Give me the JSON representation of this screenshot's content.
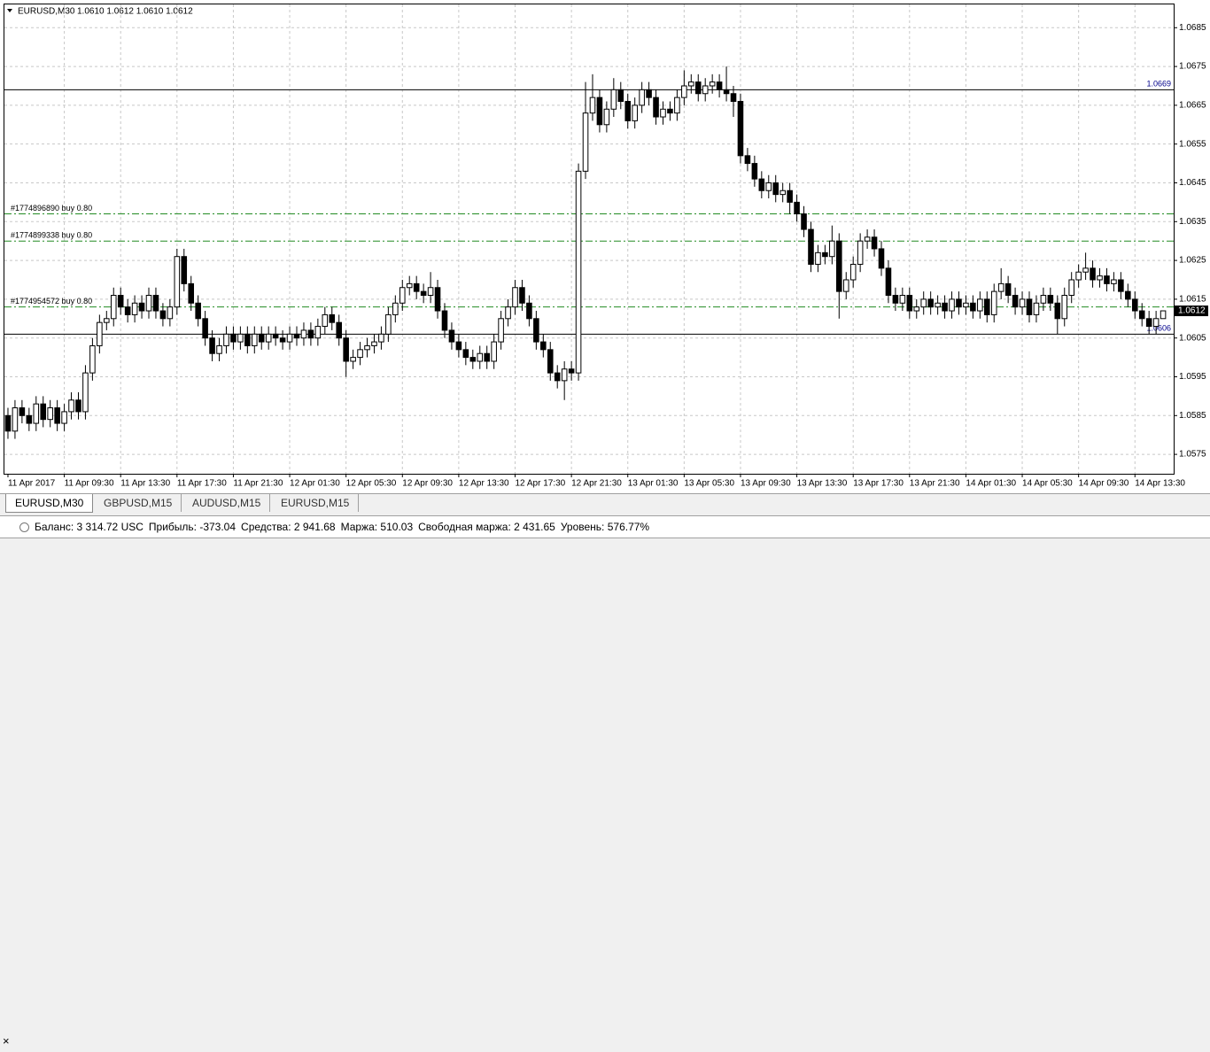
{
  "chart_data": {
    "type": "candlestick",
    "symbol": "EURUSD,M30",
    "ohlc_text": "1.0610 1.0612 1.0610 1.0612",
    "open": [
      1.0585,
      1.0581,
      1.0587,
      1.0585,
      1.0583,
      1.0588,
      1.0584,
      1.0587,
      1.0583,
      1.0586,
      1.0589,
      1.0586,
      1.0596,
      1.0603,
      1.0609,
      1.061,
      1.0616,
      1.0613,
      1.0611,
      1.0614,
      1.0612,
      1.0616,
      1.0612,
      1.061,
      1.0613,
      1.0626,
      1.0619,
      1.0614,
      1.061,
      1.0605,
      1.0601,
      1.0603,
      1.0606,
      1.0604,
      1.0606,
      1.0603,
      1.0606,
      1.0604,
      1.0606,
      1.0605,
      1.0604,
      1.0606,
      1.0605,
      1.0607,
      1.0605,
      1.0608,
      1.0611,
      1.0609,
      1.0605,
      1.0599,
      1.06,
      1.0602,
      1.0603,
      1.0604,
      1.0606,
      1.0611,
      1.0614,
      1.0618,
      1.0619,
      1.0617,
      1.0616,
      1.0618,
      1.0612,
      1.0607,
      1.0604,
      1.0602,
      1.06,
      1.0599,
      1.0601,
      1.0599,
      1.0604,
      1.061,
      1.0613,
      1.0618,
      1.0614,
      1.061,
      1.0604,
      1.0602,
      1.0596,
      1.0594,
      1.0597,
      1.0596,
      1.0648,
      1.0663,
      1.0667,
      1.066,
      1.0664,
      1.0669,
      1.0666,
      1.0661,
      1.0665,
      1.0669,
      1.0667,
      1.0662,
      1.0664,
      1.0663,
      1.0667,
      1.067,
      1.0671,
      1.0668,
      1.067,
      1.0671,
      1.0669,
      1.0668,
      1.0666,
      1.0652,
      1.065,
      1.0646,
      1.0643,
      1.0645,
      1.0642,
      1.0643,
      1.064,
      1.0637,
      1.0633,
      1.0624,
      1.0627,
      1.0626,
      1.063,
      1.0617,
      1.062,
      1.0624,
      1.063,
      1.0631,
      1.0628,
      1.0623,
      1.0616,
      1.0614,
      1.0616,
      1.0612,
      1.0613,
      1.0615,
      1.0613,
      1.0614,
      1.0612,
      1.0615,
      1.0613,
      1.0614,
      1.0612,
      1.0615,
      1.0611,
      1.0617,
      1.0619,
      1.0616,
      1.0613,
      1.0615,
      1.0611,
      1.0614,
      1.0616,
      1.0614,
      1.061,
      1.0616,
      1.062,
      1.0622,
      1.0623,
      1.062,
      1.0621,
      1.0619,
      1.062,
      1.0617,
      1.0615,
      1.0612,
      1.061,
      1.0608,
      1.061
    ],
    "high": [
      1.0587,
      1.0589,
      1.0589,
      1.0587,
      1.059,
      1.059,
      1.0589,
      1.0589,
      1.0588,
      1.0591,
      1.0591,
      1.0598,
      1.0605,
      1.0611,
      1.0612,
      1.0618,
      1.0618,
      1.0615,
      1.0616,
      1.0616,
      1.0618,
      1.0618,
      1.0614,
      1.0615,
      1.0628,
      1.0628,
      1.0621,
      1.0616,
      1.0612,
      1.0607,
      1.0605,
      1.0608,
      1.0608,
      1.0608,
      1.0608,
      1.0608,
      1.0608,
      1.0608,
      1.0608,
      1.0607,
      1.0608,
      1.0608,
      1.0609,
      1.0609,
      1.061,
      1.0613,
      1.0613,
      1.0611,
      1.0607,
      1.0602,
      1.0604,
      1.0605,
      1.0606,
      1.0608,
      1.0613,
      1.0616,
      1.062,
      1.0621,
      1.0621,
      1.0619,
      1.0622,
      1.062,
      1.0614,
      1.0609,
      1.0606,
      1.0604,
      1.0602,
      1.0603,
      1.0603,
      1.0606,
      1.0612,
      1.0615,
      1.062,
      1.062,
      1.0616,
      1.0612,
      1.0606,
      1.0604,
      1.0598,
      1.0599,
      1.0599,
      1.065,
      1.0671,
      1.0673,
      1.0669,
      1.0666,
      1.0672,
      1.0671,
      1.0668,
      1.0667,
      1.0671,
      1.0671,
      1.0669,
      1.0666,
      1.0666,
      1.0669,
      1.0674,
      1.0673,
      1.0673,
      1.0672,
      1.0673,
      1.0673,
      1.0675,
      1.067,
      1.0668,
      1.0654,
      1.0652,
      1.0648,
      1.0647,
      1.0647,
      1.0645,
      1.0645,
      1.0642,
      1.0639,
      1.0635,
      1.0629,
      1.0629,
      1.0634,
      1.0632,
      1.0622,
      1.0626,
      1.0632,
      1.0633,
      1.0633,
      1.063,
      1.0625,
      1.0618,
      1.0618,
      1.0618,
      1.0615,
      1.0617,
      1.0617,
      1.0616,
      1.0616,
      1.0617,
      1.0617,
      1.0616,
      1.0616,
      1.0617,
      1.0617,
      1.0619,
      1.0623,
      1.0621,
      1.0618,
      1.0617,
      1.0617,
      1.0616,
      1.0618,
      1.0618,
      1.0616,
      1.0618,
      1.0622,
      1.0624,
      1.0627,
      1.0625,
      1.0623,
      1.0623,
      1.0622,
      1.0622,
      1.0619,
      1.0617,
      1.0614,
      1.0612,
      1.0612,
      1.0612
    ],
    "low": [
      1.0579,
      1.0579,
      1.0583,
      1.0581,
      1.0581,
      1.0582,
      1.0582,
      1.0581,
      1.0581,
      1.0584,
      1.0584,
      1.0584,
      1.0594,
      1.0601,
      1.0607,
      1.0608,
      1.0611,
      1.0609,
      1.0609,
      1.061,
      1.061,
      1.061,
      1.0608,
      1.0608,
      1.0611,
      1.0617,
      1.0612,
      1.0608,
      1.0603,
      1.0599,
      1.0599,
      1.0601,
      1.0602,
      1.0602,
      1.0601,
      1.0601,
      1.0602,
      1.0602,
      1.0603,
      1.0602,
      1.0602,
      1.0603,
      1.0603,
      1.0603,
      1.0603,
      1.0606,
      1.0607,
      1.0603,
      1.0595,
      1.0597,
      1.0598,
      1.06,
      1.0601,
      1.0602,
      1.0604,
      1.0609,
      1.0612,
      1.0616,
      1.0615,
      1.0614,
      1.0614,
      1.061,
      1.0605,
      1.0602,
      1.06,
      1.0598,
      1.0597,
      1.0597,
      1.0597,
      1.0597,
      1.0602,
      1.0608,
      1.0611,
      1.0612,
      1.0608,
      1.0602,
      1.06,
      1.0594,
      1.0592,
      1.0589,
      1.0594,
      1.0594,
      1.0646,
      1.0661,
      1.0658,
      1.0658,
      1.0662,
      1.0664,
      1.0659,
      1.0659,
      1.0663,
      1.0665,
      1.066,
      1.066,
      1.0661,
      1.0661,
      1.0665,
      1.0668,
      1.0666,
      1.0666,
      1.0668,
      1.0667,
      1.0666,
      1.0662,
      1.065,
      1.0648,
      1.0644,
      1.0641,
      1.0641,
      1.064,
      1.064,
      1.0637,
      1.0635,
      1.0631,
      1.0622,
      1.0622,
      1.0624,
      1.0624,
      1.061,
      1.0615,
      1.0618,
      1.0622,
      1.0628,
      1.0626,
      1.0621,
      1.0614,
      1.0612,
      1.0612,
      1.061,
      1.061,
      1.0611,
      1.0611,
      1.0611,
      1.061,
      1.061,
      1.0611,
      1.0611,
      1.061,
      1.061,
      1.0609,
      1.0609,
      1.0615,
      1.0614,
      1.0611,
      1.0611,
      1.0609,
      1.0609,
      1.0612,
      1.0612,
      1.0606,
      1.0608,
      1.0614,
      1.0618,
      1.062,
      1.0618,
      1.0618,
      1.0617,
      1.0617,
      1.0615,
      1.0613,
      1.061,
      1.0608,
      1.0606,
      1.0606,
      1.061
    ],
    "close": [
      1.0581,
      1.0587,
      1.0585,
      1.0583,
      1.0588,
      1.0584,
      1.0587,
      1.0583,
      1.0586,
      1.0589,
      1.0586,
      1.0596,
      1.0603,
      1.0609,
      1.061,
      1.0616,
      1.0613,
      1.0611,
      1.0614,
      1.0612,
      1.0616,
      1.0612,
      1.061,
      1.0613,
      1.0626,
      1.0619,
      1.0614,
      1.061,
      1.0605,
      1.0601,
      1.0603,
      1.0606,
      1.0604,
      1.0606,
      1.0603,
      1.0606,
      1.0604,
      1.0606,
      1.0605,
      1.0604,
      1.0606,
      1.0605,
      1.0607,
      1.0605,
      1.0608,
      1.0611,
      1.0609,
      1.0605,
      1.0599,
      1.06,
      1.0602,
      1.0603,
      1.0604,
      1.0606,
      1.0611,
      1.0614,
      1.0618,
      1.0619,
      1.0617,
      1.0616,
      1.0618,
      1.0612,
      1.0607,
      1.0604,
      1.0602,
      1.06,
      1.0599,
      1.0601,
      1.0599,
      1.0604,
      1.061,
      1.0613,
      1.0618,
      1.0614,
      1.061,
      1.0604,
      1.0602,
      1.0596,
      1.0594,
      1.0597,
      1.0596,
      1.0648,
      1.0663,
      1.0667,
      1.066,
      1.0664,
      1.0669,
      1.0666,
      1.0661,
      1.0665,
      1.0669,
      1.0667,
      1.0662,
      1.0664,
      1.0663,
      1.0667,
      1.067,
      1.0671,
      1.0668,
      1.067,
      1.0671,
      1.0669,
      1.0668,
      1.0666,
      1.0652,
      1.065,
      1.0646,
      1.0643,
      1.0645,
      1.0642,
      1.0643,
      1.064,
      1.0637,
      1.0633,
      1.0624,
      1.0627,
      1.0626,
      1.063,
      1.0617,
      1.062,
      1.0624,
      1.063,
      1.0631,
      1.0628,
      1.0623,
      1.0616,
      1.0614,
      1.0616,
      1.0612,
      1.0613,
      1.0615,
      1.0613,
      1.0614,
      1.0612,
      1.0615,
      1.0613,
      1.0614,
      1.0612,
      1.0615,
      1.0611,
      1.0617,
      1.0619,
      1.0616,
      1.0613,
      1.0615,
      1.0611,
      1.0614,
      1.0616,
      1.0614,
      1.061,
      1.0616,
      1.062,
      1.0622,
      1.0623,
      1.062,
      1.0621,
      1.0619,
      1.062,
      1.0617,
      1.0615,
      1.0612,
      1.061,
      1.0608,
      1.061,
      1.0612
    ],
    "ylim": [
      1.057,
      1.0691
    ],
    "yticks": [
      1.0575,
      1.0585,
      1.0595,
      1.0605,
      1.0615,
      1.0625,
      1.0635,
      1.0645,
      1.0655,
      1.0665,
      1.0675,
      1.0685
    ],
    "xticks": [
      {
        "value": 0,
        "label": "11 Apr 2017"
      },
      {
        "value": 8,
        "label": "11 Apr 09:30"
      },
      {
        "value": 16,
        "label": "11 Apr 13:30"
      },
      {
        "value": 24,
        "label": "11 Apr 17:30"
      },
      {
        "value": 32,
        "label": "11 Apr 21:30"
      },
      {
        "value": 40,
        "label": "12 Apr 01:30"
      },
      {
        "value": 48,
        "label": "12 Apr 05:30"
      },
      {
        "value": 56,
        "label": "12 Apr 09:30"
      },
      {
        "value": 64,
        "label": "12 Apr 13:30"
      },
      {
        "value": 72,
        "label": "12 Apr 17:30"
      },
      {
        "value": 80,
        "label": "12 Apr 21:30"
      },
      {
        "value": 88,
        "label": "13 Apr 01:30"
      },
      {
        "value": 96,
        "label": "13 Apr 05:30"
      },
      {
        "value": 104,
        "label": "13 Apr 09:30"
      },
      {
        "value": 112,
        "label": "13 Apr 13:30"
      },
      {
        "value": 120,
        "label": "13 Apr 17:30"
      },
      {
        "value": 128,
        "label": "13 Apr 21:30"
      },
      {
        "value": 136,
        "label": "14 Apr 01:30"
      },
      {
        "value": 144,
        "label": "14 Apr 05:30"
      },
      {
        "value": 152,
        "label": "14 Apr 09:30"
      },
      {
        "value": 160,
        "label": "14 Apr 13:30"
      }
    ],
    "xlim": [
      -0.5,
      165.5
    ],
    "grid": true,
    "hlines": [
      1.0669,
      1.0606
    ],
    "orders": [
      {
        "label": "#1774896890 buy 0.80",
        "price": 1.0637
      },
      {
        "label": "#1774899338 buy 0.80",
        "price": 1.063
      },
      {
        "label": "#1774954572 buy 0.80",
        "price": 1.0613
      }
    ],
    "current_price": 1.0612
  },
  "tabs": [
    "EURUSD,M30",
    "GBPUSD,M15",
    "AUDUSD,M15",
    "EURUSD,M15"
  ],
  "status": [
    "Баланс: 3 314.72 USC",
    "Прибыль: -373.04",
    "Средства: 2 941.68",
    "Маржа: 510.03",
    "Свободная маржа: 2 431.65",
    "Уровень: 576.77%"
  ]
}
